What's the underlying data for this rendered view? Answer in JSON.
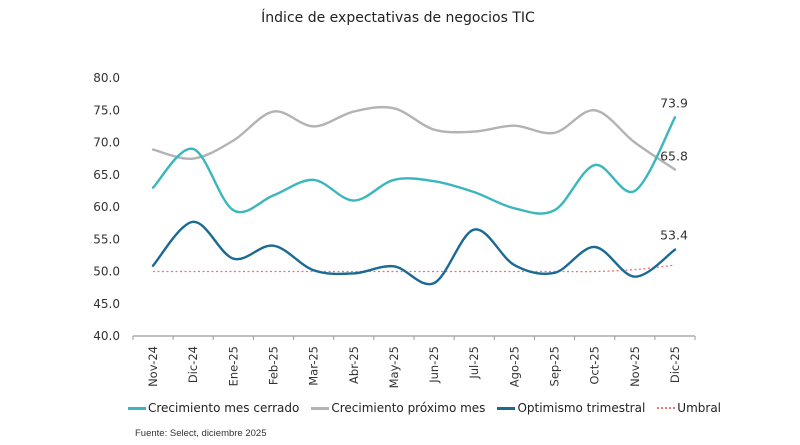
{
  "chart_data": {
    "type": "line",
    "title": "Índice de expectativas de negocios TIC",
    "xlabel": "",
    "ylabel": "",
    "ylim": [
      40,
      80
    ],
    "yticks": [
      "40.0",
      "45.0",
      "50.0",
      "55.0",
      "60.0",
      "65.0",
      "70.0",
      "75.0",
      "80.0"
    ],
    "ytick_values": [
      40,
      45,
      50,
      55,
      60,
      65,
      70,
      75,
      80
    ],
    "grid": false,
    "legend_position": "bottom",
    "categories": [
      "Nov-24",
      "Dic-24",
      "Ene-25",
      "Feb-25",
      "Mar-25",
      "Abr-25",
      "May-25",
      "Jun-25",
      "Jul-25",
      "Ago-25",
      "Sep-25",
      "Oct-25",
      "Nov-25",
      "Dic-25"
    ],
    "series": [
      {
        "name": "Crecimiento mes cerrado",
        "color": "#3bb6bd",
        "style": "solid",
        "values": [
          63.0,
          69.0,
          59.5,
          61.8,
          64.2,
          61.0,
          64.2,
          64.0,
          62.3,
          59.8,
          59.5,
          66.5,
          62.5,
          73.9
        ],
        "end_label": "73.9"
      },
      {
        "name": "Crecimiento próximo mes",
        "color": "#b3b3b3",
        "style": "solid",
        "values": [
          68.9,
          67.5,
          70.3,
          74.8,
          72.5,
          74.8,
          75.3,
          72.0,
          71.7,
          72.6,
          71.5,
          75.0,
          70.0,
          65.8
        ],
        "end_label": "65.8"
      },
      {
        "name": "Optimismo trimestral",
        "color": "#1b6a92",
        "style": "solid",
        "values": [
          50.9,
          57.7,
          52.0,
          54.0,
          50.2,
          49.7,
          50.8,
          48.2,
          56.5,
          51.0,
          49.8,
          53.8,
          49.2,
          53.4
        ],
        "end_label": "53.4"
      },
      {
        "name": "Umbral",
        "color": "#f07070",
        "style": "dotted",
        "values": [
          50,
          50,
          50,
          50,
          50,
          50,
          50,
          50,
          50,
          50,
          50,
          50,
          50.3,
          51.0
        ],
        "end_label": null
      }
    ],
    "source": "Fuente: Select, diciembre 2025"
  }
}
